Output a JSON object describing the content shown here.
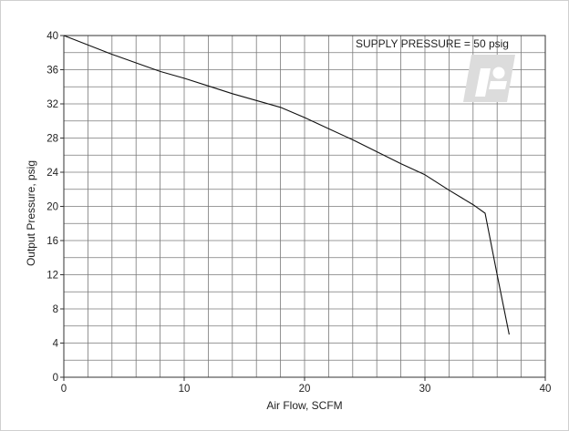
{
  "chart_data": {
    "type": "line",
    "title": "",
    "xlabel": "Air Flow, SCFM",
    "ylabel": "Output Pressure, psig",
    "xlim": [
      0,
      40
    ],
    "ylim": [
      0,
      40
    ],
    "x_ticks": [
      0,
      10,
      20,
      30,
      40
    ],
    "y_ticks": [
      0,
      4,
      8,
      12,
      16,
      20,
      24,
      28,
      32,
      36,
      40
    ],
    "x_minor_step": 2,
    "y_minor_step": 2,
    "grid": true,
    "annotation": "SUPPLY PRESSURE = 50 psig",
    "colors": {
      "line": "#111111",
      "grid": "#7a7a7a",
      "logo": "#dcdcdc",
      "frame": "#cfcfcf"
    },
    "logo_icon": "company-logo-watermark",
    "series": [
      {
        "x": [
          0,
          4,
          6,
          8,
          10,
          12,
          14,
          16,
          18,
          20,
          22,
          24,
          26,
          28,
          30,
          32,
          34,
          35,
          36,
          37
        ],
        "y": [
          40,
          37.8,
          36.8,
          35.8,
          35,
          34.1,
          33.2,
          32.4,
          31.6,
          30.4,
          29.1,
          27.8,
          26.4,
          25,
          23.7,
          21.9,
          20.2,
          19.2,
          12,
          5
        ]
      }
    ]
  }
}
